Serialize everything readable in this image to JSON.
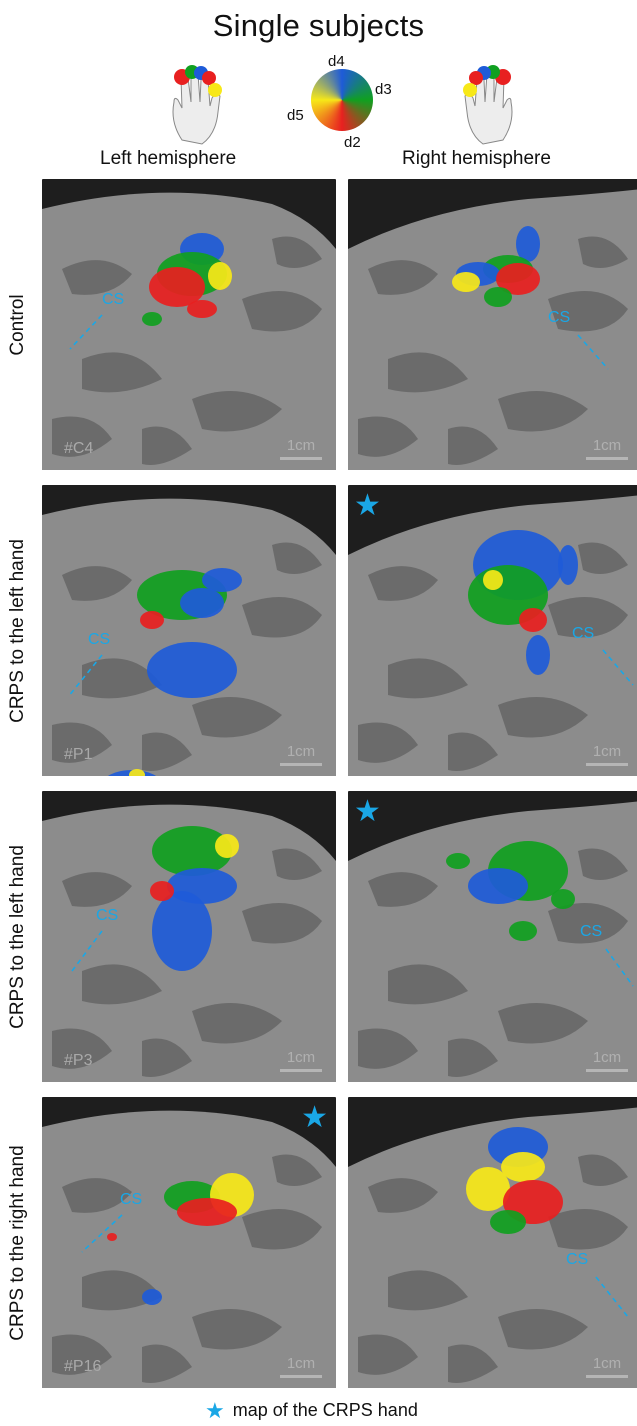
{
  "title": "Single subjects",
  "colormap": {
    "labels": {
      "d4": "d4",
      "d3": "d3",
      "d5": "d5",
      "d2": "d2"
    },
    "colors": {
      "d2": "#e82020",
      "d3": "#10a020",
      "d4": "#1e5bd8",
      "d5": "#f7e818"
    }
  },
  "hemispheres": {
    "left": "Left hemisphere",
    "right": "Right hemisphere"
  },
  "rows": [
    {
      "label": "Control",
      "subject": "#C4",
      "starred": ""
    },
    {
      "label": "CRPS to the left hand",
      "subject": "#P1",
      "starred": "right"
    },
    {
      "label": "CRPS to the left hand",
      "subject": "#P3",
      "starred": "right"
    },
    {
      "label": "CRPS to the right hand",
      "subject": "#P16",
      "starred": "left"
    }
  ],
  "panel_annotations": {
    "sulcus": "CS",
    "scale": "1cm"
  },
  "legend": {
    "text": "map of the CRPS hand"
  },
  "style_colors": {
    "sulcus": "#1aa7e6",
    "background_cortex": "#8a8a8a",
    "dark_cortex": "#666666",
    "star": "#1aa7e6"
  }
}
